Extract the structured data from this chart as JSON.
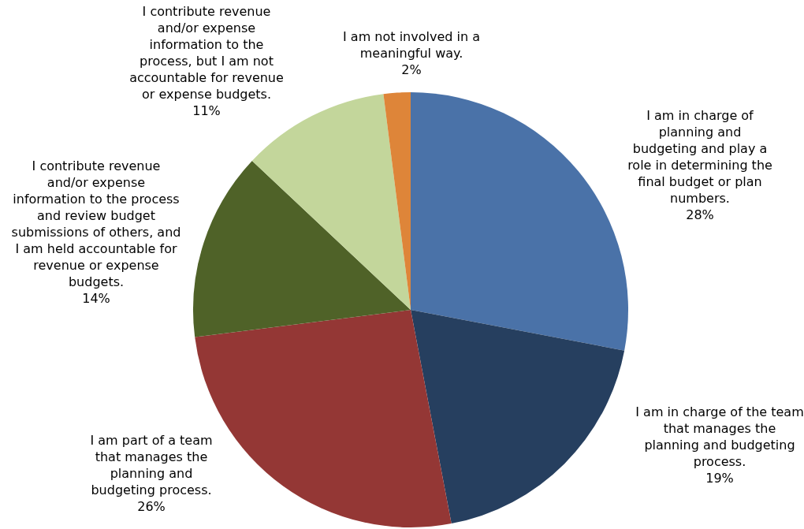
{
  "chart_data": {
    "type": "pie",
    "categories": [
      "I am in charge of planning and budgeting and play a role in determining the final budget or plan numbers.",
      "I am in charge of the team that manages the planning and budgeting process.",
      "I am part of a team that manages the planning and budgeting process.",
      "I contribute revenue and/or expense information to the process and review budget submissions of others, and I am held accountable for revenue or expense budgets.",
      "I contribute revenue and/or expense information to the process, but I am not accountable for revenue or expense budgets.",
      "I am not involved in a meaningful way."
    ],
    "values": [
      28,
      19,
      26,
      14,
      11,
      2
    ],
    "value_labels": [
      "28%",
      "19%",
      "26%",
      "14%",
      "11%",
      "2%"
    ],
    "colors": [
      "#4a72a8",
      "#263f5f",
      "#943735",
      "#4f6228",
      "#c3d69b",
      "#de8539"
    ],
    "legend": false
  }
}
